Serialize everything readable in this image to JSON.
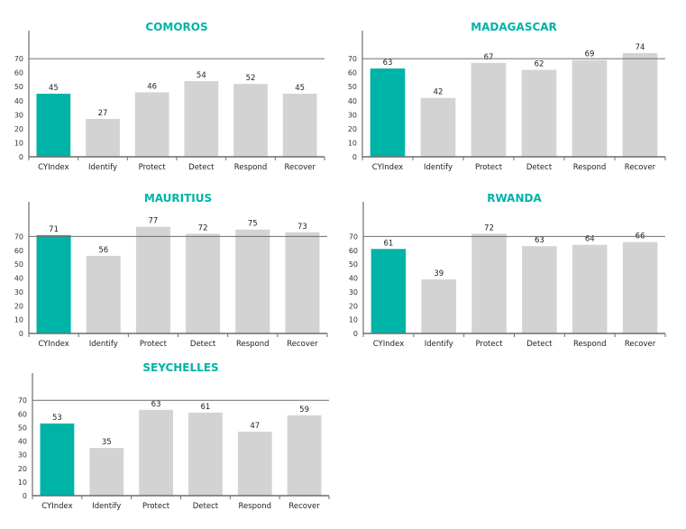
{
  "colors": {
    "accent": "#00b3a7",
    "bar": "#d3d3d3",
    "axis": "#6d6d6d",
    "title": "#00b3a7"
  },
  "chart_data": [
    {
      "type": "bar",
      "title": "COMOROS",
      "categories": [
        "CYIndex",
        "Identify",
        "Protect",
        "Detect",
        "Respond",
        "Recover"
      ],
      "values": [
        45,
        27,
        46,
        54,
        52,
        45
      ],
      "yticks": [
        0,
        10,
        20,
        30,
        40,
        50,
        60,
        70
      ],
      "ylim": [
        0,
        90
      ],
      "reference_line": 70,
      "highlight_index": 0
    },
    {
      "type": "bar",
      "title": "MADAGASCAR",
      "categories": [
        "CYIndex",
        "Identify",
        "Protect",
        "Detect",
        "Respond",
        "Recover"
      ],
      "values": [
        63,
        42,
        67,
        62,
        69,
        74
      ],
      "yticks": [
        0,
        10,
        20,
        30,
        40,
        50,
        60,
        70
      ],
      "ylim": [
        0,
        90
      ],
      "reference_line": 70,
      "highlight_index": 0
    },
    {
      "type": "bar",
      "title": "MAURITIUS",
      "categories": [
        "CYIndex",
        "Identify",
        "Protect",
        "Detect",
        "Respond",
        "Recover"
      ],
      "values": [
        71,
        56,
        77,
        72,
        75,
        73
      ],
      "yticks": [
        0,
        10,
        20,
        30,
        40,
        50,
        60,
        70
      ],
      "ylim": [
        0,
        95
      ],
      "reference_line": 70,
      "highlight_index": 0
    },
    {
      "type": "bar",
      "title": "RWANDA",
      "categories": [
        "CYIndex",
        "Identify",
        "Protect",
        "Detect",
        "Respond",
        "Recover"
      ],
      "values": [
        61,
        39,
        72,
        63,
        64,
        66
      ],
      "yticks": [
        0,
        10,
        20,
        30,
        40,
        50,
        60,
        70
      ],
      "ylim": [
        0,
        95
      ],
      "reference_line": 70,
      "highlight_index": 0
    },
    {
      "type": "bar",
      "title": "SEYCHELLES",
      "categories": [
        "CYIndex",
        "Identify",
        "Protect",
        "Detect",
        "Respond",
        "Recover"
      ],
      "values": [
        53,
        35,
        63,
        61,
        47,
        59
      ],
      "yticks": [
        0,
        10,
        20,
        30,
        40,
        50,
        60,
        70
      ],
      "ylim": [
        0,
        90
      ],
      "reference_line": 70,
      "highlight_index": 0
    }
  ]
}
